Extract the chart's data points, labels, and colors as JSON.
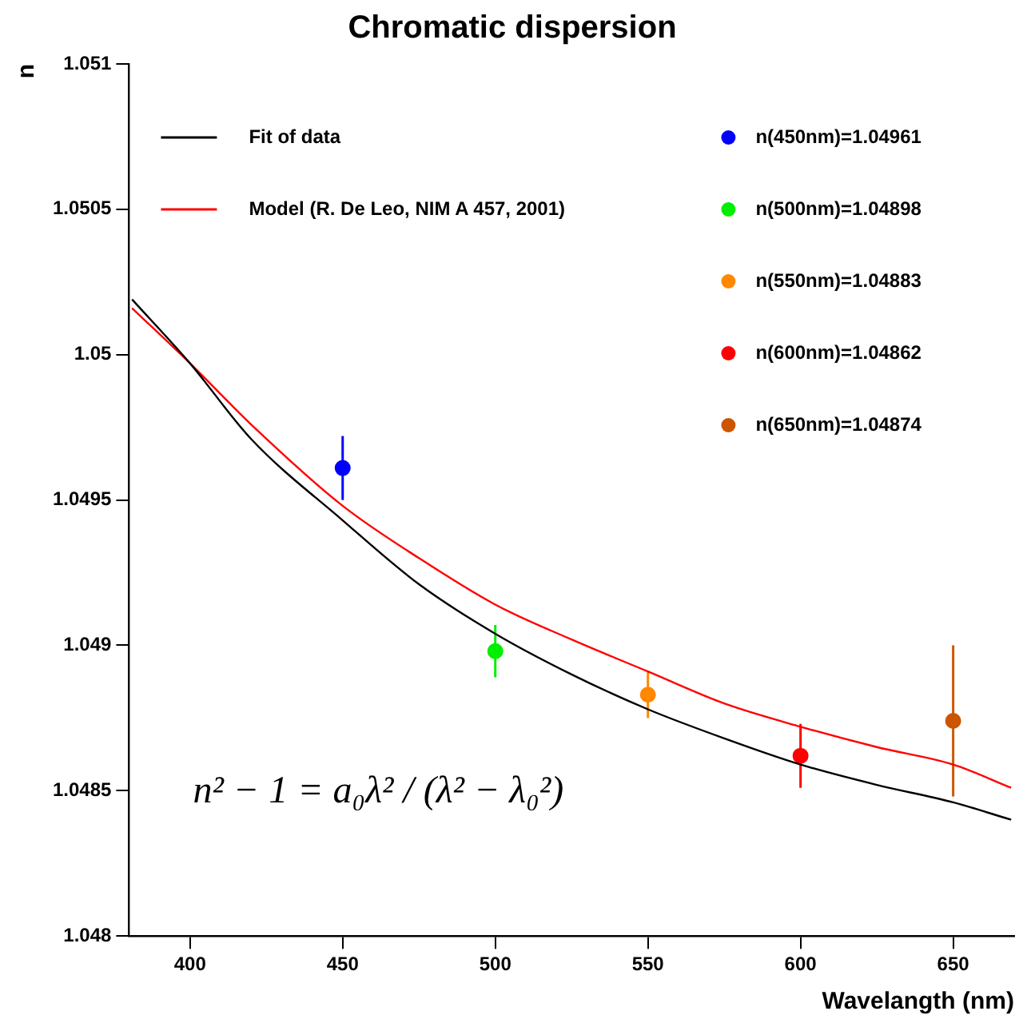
{
  "chart_data": {
    "type": "line",
    "title": "Chromatic dispersion",
    "xlabel": "Wavelangth (nm)",
    "ylabel": "n",
    "xlim": [
      380,
      670
    ],
    "xticks": [
      400,
      450,
      500,
      550,
      600,
      650
    ],
    "ylim": [
      1.048,
      1.051
    ],
    "yticks": [
      1.048,
      1.0485,
      1.049,
      1.0495,
      1.05,
      1.0505,
      1.051
    ],
    "grid": false,
    "legend": "top",
    "annotations": [
      "n² − 1 = a₀λ² / (λ² − λ₀²)"
    ],
    "series": [
      {
        "name": "Fit of data",
        "type": "line",
        "color": "#000000",
        "x": [
          381,
          400,
          420,
          450,
          475,
          500,
          525,
          550,
          575,
          600,
          625,
          650,
          669
        ],
        "values": [
          1.05019,
          1.04997,
          1.04971,
          1.04943,
          1.04921,
          1.04904,
          1.0489,
          1.04878,
          1.04868,
          1.04859,
          1.04852,
          1.04846,
          1.0484
        ]
      },
      {
        "name": "Model (R. De Leo, NIM A 457, 2001)",
        "type": "line",
        "color": "#ff0000",
        "x": [
          381,
          400,
          420,
          450,
          475,
          500,
          525,
          550,
          575,
          600,
          625,
          650,
          669
        ],
        "values": [
          1.05016,
          1.04997,
          1.04976,
          1.04948,
          1.0493,
          1.04914,
          1.04902,
          1.04891,
          1.0488,
          1.04872,
          1.04865,
          1.04859,
          1.04851
        ]
      },
      {
        "name": "n(450nm)=1.04961",
        "type": "scatter",
        "color": "#0000ff",
        "marker": "circle",
        "x": [
          450
        ],
        "values": [
          1.04961
        ],
        "errors": [
          0.00011
        ]
      },
      {
        "name": "n(500nm)=1.04898",
        "type": "scatter",
        "color": "#00ee00",
        "marker": "circle",
        "x": [
          500
        ],
        "values": [
          1.04898
        ],
        "errors": [
          9e-05
        ]
      },
      {
        "name": "n(550nm)=1.04883",
        "type": "scatter",
        "color": "#ff8800",
        "marker": "circle",
        "x": [
          550
        ],
        "values": [
          1.04883
        ],
        "errors": [
          8e-05
        ]
      },
      {
        "name": "n(600nm)=1.04862",
        "type": "scatter",
        "color": "#ff0000",
        "marker": "circle",
        "x": [
          600
        ],
        "values": [
          1.04862
        ],
        "errors": [
          0.00011
        ]
      },
      {
        "name": "n(650nm)=1.04874",
        "type": "scatter",
        "color": "#cc5500",
        "marker": "circle",
        "x": [
          650
        ],
        "values": [
          1.04874
        ],
        "errors": [
          0.00026
        ]
      }
    ]
  }
}
